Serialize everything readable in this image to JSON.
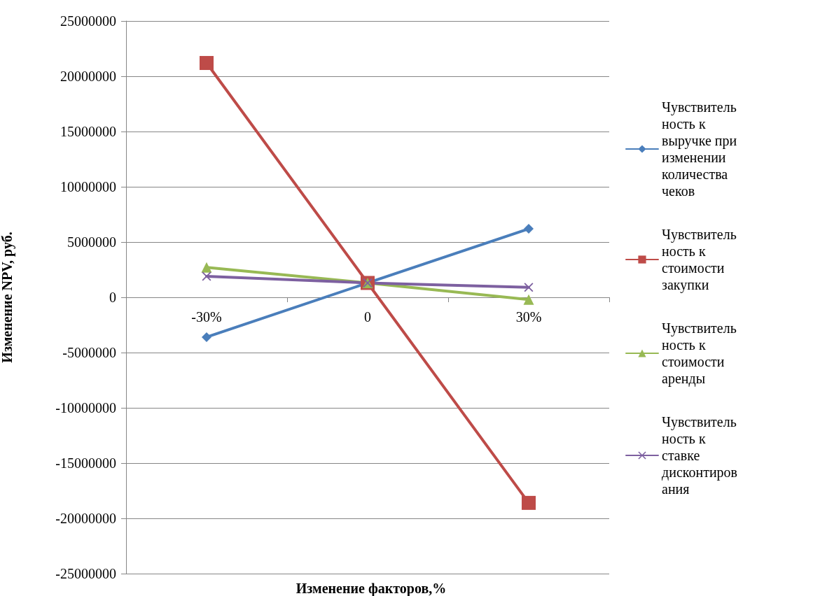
{
  "chart_data": {
    "type": "line",
    "xlabel": "Изменение факторов,%",
    "ylabel": "Изменение NPV, руб.",
    "categories": [
      "-30%",
      "0",
      "30%"
    ],
    "series": [
      {
        "name": "Чувствительность к выручке при изменении количества чеков",
        "color": "#4a7ebb",
        "marker": "diamond",
        "values": [
          -3600000,
          1300000,
          6200000
        ]
      },
      {
        "name": "Чувствительность к стоимости закупки",
        "color": "#be4b48",
        "marker": "square",
        "values": [
          21200000,
          1300000,
          -18600000
        ]
      },
      {
        "name": "Чувствительность к стоимости аренды",
        "color": "#98b954",
        "marker": "triangle",
        "values": [
          2700000,
          1300000,
          -200000
        ]
      },
      {
        "name": "Чувствительность к ставке дисконтирования",
        "color": "#7d60a0",
        "marker": "cross",
        "values": [
          1900000,
          1300000,
          900000
        ]
      }
    ],
    "ylim": [
      -25000000,
      25000000
    ],
    "yticks": [
      -25000000,
      -20000000,
      -15000000,
      -10000000,
      -5000000,
      0,
      5000000,
      10000000,
      15000000,
      20000000,
      25000000
    ],
    "grid": "y",
    "legend": "right",
    "line_style": "solid"
  }
}
